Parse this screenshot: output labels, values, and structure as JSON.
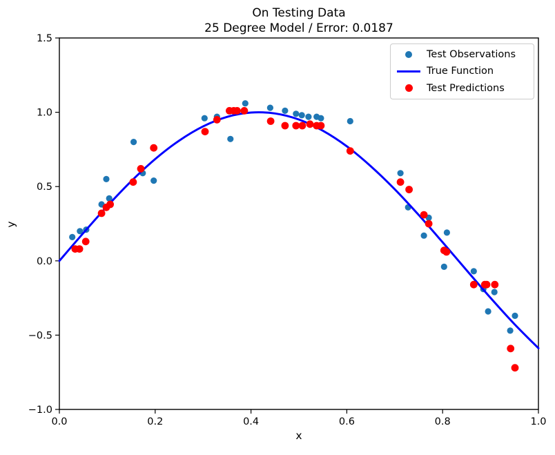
{
  "figure": {
    "title_line1": "On Testing Data",
    "title_line2": "25 Degree Model / Error: 0.0187",
    "xlabel": "x",
    "ylabel": "y"
  },
  "colors": {
    "observations": "#1f77b4",
    "true_function": "#0000ff",
    "predictions": "#ff0000",
    "axes": "#000000",
    "legend_border": "#cccccc"
  },
  "legend": {
    "position": "upper right",
    "items": [
      {
        "label": "Test Observations",
        "marker": "dot",
        "color": "#1f77b4"
      },
      {
        "label": "True Function",
        "marker": "line",
        "color": "#0000ff"
      },
      {
        "label": "Test Predictions",
        "marker": "dot",
        "color": "#ff0000"
      }
    ]
  },
  "chart_data": {
    "type": "scatter",
    "title": "On Testing Data\n25 Degree Model / Error: 0.0187",
    "xlabel": "x",
    "ylabel": "y",
    "xlim": [
      0.0,
      1.0
    ],
    "ylim": [
      -1.0,
      1.5
    ],
    "grid": false,
    "legend_position": "upper right",
    "xticks": {
      "values": [
        0.0,
        0.2,
        0.4,
        0.6,
        0.8,
        1.0
      ],
      "labels": [
        "0.0",
        "0.2",
        "0.4",
        "0.6",
        "0.8",
        "1.0"
      ]
    },
    "yticks": {
      "values": [
        1.5,
        1.0,
        0.5,
        0.0,
        -0.5,
        -1.0
      ],
      "labels": [
        "1.5",
        "1.0",
        "0.5",
        "0.0",
        "−0.5",
        "−1.0"
      ]
    },
    "series": [
      {
        "name": "Test Observations",
        "type": "scatter",
        "color": "#1f77b4",
        "points": [
          [
            0.027,
            0.16
          ],
          [
            0.043,
            0.2
          ],
          [
            0.056,
            0.21
          ],
          [
            0.088,
            0.38
          ],
          [
            0.104,
            0.42
          ],
          [
            0.098,
            0.55
          ],
          [
            0.155,
            0.8
          ],
          [
            0.174,
            0.59
          ],
          [
            0.197,
            0.54
          ],
          [
            0.303,
            0.96
          ],
          [
            0.329,
            0.97
          ],
          [
            0.357,
            0.82
          ],
          [
            0.388,
            1.06
          ],
          [
            0.44,
            1.03
          ],
          [
            0.471,
            1.01
          ],
          [
            0.494,
            0.99
          ],
          [
            0.506,
            0.98
          ],
          [
            0.52,
            0.97
          ],
          [
            0.537,
            0.97
          ],
          [
            0.546,
            0.96
          ],
          [
            0.607,
            0.94
          ],
          [
            0.712,
            0.59
          ],
          [
            0.728,
            0.36
          ],
          [
            0.761,
            0.17
          ],
          [
            0.771,
            0.29
          ],
          [
            0.803,
            -0.04
          ],
          [
            0.809,
            0.19
          ],
          [
            0.865,
            -0.07
          ],
          [
            0.885,
            -0.19
          ],
          [
            0.908,
            -0.21
          ],
          [
            0.895,
            -0.34
          ],
          [
            0.941,
            -0.47
          ],
          [
            0.951,
            -0.37
          ]
        ]
      },
      {
        "name": "True Function",
        "type": "line",
        "color": "#0000ff",
        "points": [
          [
            0.0,
            0.0
          ],
          [
            0.05,
            0.187
          ],
          [
            0.1,
            0.368
          ],
          [
            0.15,
            0.536
          ],
          [
            0.2,
            0.685
          ],
          [
            0.25,
            0.809
          ],
          [
            0.3,
            0.905
          ],
          [
            0.35,
            0.969
          ],
          [
            0.4,
            0.998
          ],
          [
            0.45,
            0.992
          ],
          [
            0.5,
            0.951
          ],
          [
            0.55,
            0.876
          ],
          [
            0.6,
            0.771
          ],
          [
            0.65,
            0.637
          ],
          [
            0.7,
            0.482
          ],
          [
            0.75,
            0.309
          ],
          [
            0.8,
            0.125
          ],
          [
            0.85,
            -0.063
          ],
          [
            0.9,
            -0.249
          ],
          [
            0.95,
            -0.426
          ],
          [
            1.0,
            -0.588
          ]
        ]
      },
      {
        "name": "Test Predictions",
        "type": "scatter",
        "color": "#ff0000",
        "points": [
          [
            0.033,
            0.08
          ],
          [
            0.042,
            0.08
          ],
          [
            0.055,
            0.13
          ],
          [
            0.088,
            0.32
          ],
          [
            0.098,
            0.36
          ],
          [
            0.106,
            0.38
          ],
          [
            0.154,
            0.53
          ],
          [
            0.17,
            0.62
          ],
          [
            0.197,
            0.76
          ],
          [
            0.304,
            0.87
          ],
          [
            0.329,
            0.95
          ],
          [
            0.355,
            1.01
          ],
          [
            0.364,
            1.01
          ],
          [
            0.371,
            1.01
          ],
          [
            0.386,
            1.01
          ],
          [
            0.441,
            0.94
          ],
          [
            0.471,
            0.91
          ],
          [
            0.494,
            0.91
          ],
          [
            0.507,
            0.91
          ],
          [
            0.523,
            0.92
          ],
          [
            0.537,
            0.91
          ],
          [
            0.546,
            0.91
          ],
          [
            0.607,
            0.74
          ],
          [
            0.712,
            0.53
          ],
          [
            0.73,
            0.48
          ],
          [
            0.761,
            0.31
          ],
          [
            0.771,
            0.25
          ],
          [
            0.803,
            0.07
          ],
          [
            0.808,
            0.06
          ],
          [
            0.865,
            -0.16
          ],
          [
            0.888,
            -0.16
          ],
          [
            0.892,
            -0.16
          ],
          [
            0.909,
            -0.16
          ],
          [
            0.942,
            -0.59
          ],
          [
            0.951,
            -0.72
          ]
        ]
      }
    ]
  }
}
